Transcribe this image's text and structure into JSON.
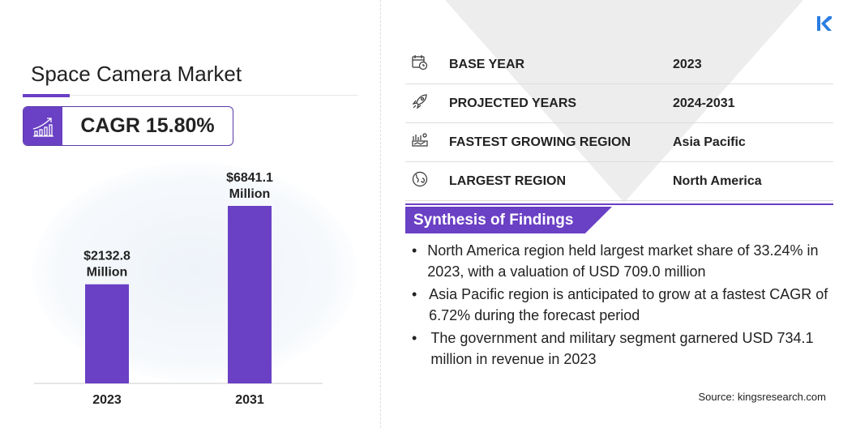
{
  "title": "Space Camera Market",
  "cagr": "CAGR 15.80%",
  "chart_data": {
    "type": "bar",
    "categories": [
      "2023",
      "2031"
    ],
    "values": [
      2132.8,
      6841.1
    ],
    "data_labels": [
      "$2132.8\nMillion",
      "$6841.1\nMillion"
    ],
    "label_line1": [
      "$2132.8",
      "$6841.1"
    ],
    "label_line2": [
      "Million",
      "Million"
    ],
    "bar_color": "#6a40c4"
  },
  "info_rows": [
    {
      "icon": "calendar-clock-icon",
      "key": "BASE YEAR",
      "value": "2023"
    },
    {
      "icon": "rocket-icon",
      "key": "PROJECTED YEARS",
      "value": "2024-2031"
    },
    {
      "icon": "region-growth-icon",
      "key": "FASTEST GROWING REGION",
      "value": "Asia Pacific"
    },
    {
      "icon": "globe-icon",
      "key": "LARGEST REGION",
      "value": "North America"
    }
  ],
  "synthesis_title": "Synthesis of Findings",
  "findings": [
    "North America region held largest market share of 33.24% in 2023, with a valuation of USD 709.0 million",
    "Asia Pacific region is anticipated to grow at a fastest CAGR of 6.72% during the forecast period",
    "The government and military segment garnered USD 734.1 million in revenue in 2023"
  ],
  "bullet": "•",
  "source": "Source:  kingsresearch.com",
  "colors": {
    "accent": "#6a40c4",
    "logo": "#2a7de1"
  }
}
